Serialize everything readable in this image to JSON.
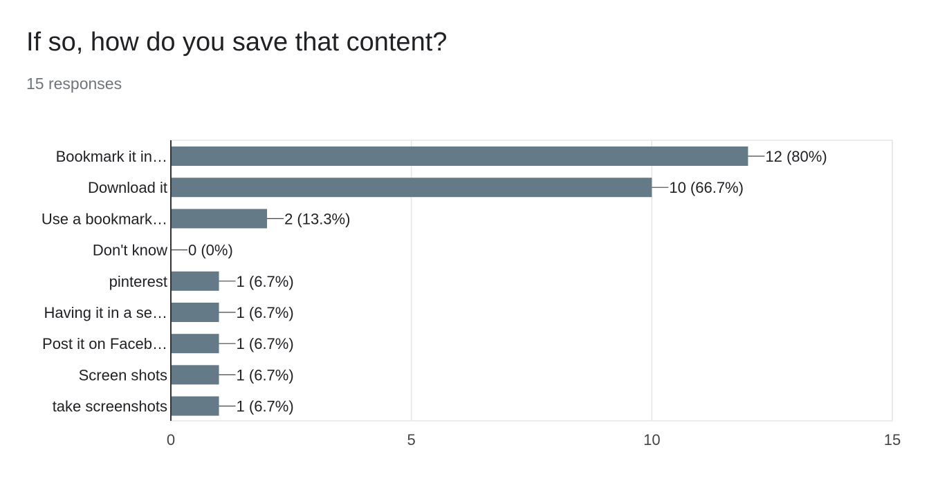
{
  "header": {
    "title": "If so, how do you save that content?",
    "responses": "15 responses"
  },
  "colors": {
    "bar": "#647a86",
    "grid": "#e6e6e6",
    "axis": "#333333",
    "text": "#202124",
    "muted": "#70757a"
  },
  "chart_data": {
    "type": "bar",
    "orientation": "horizontal",
    "categories": [
      "Bookmark it in…",
      "Download it",
      "Use a bookmark…",
      "Don't know",
      "pinterest",
      "Having it in a se…",
      "Post it on Faceb…",
      "Screen shots",
      "take screenshots"
    ],
    "values": [
      12,
      10,
      2,
      0,
      1,
      1,
      1,
      1,
      1
    ],
    "data_labels": [
      "12 (80%)",
      "10 (66.7%)",
      "2 (13.3%)",
      "0 (0%)",
      "1 (6.7%)",
      "1 (6.7%)",
      "1 (6.7%)",
      "1 (6.7%)",
      "1 (6.7%)"
    ],
    "xlim": [
      0,
      15
    ],
    "xticks": [
      "0",
      "5",
      "10",
      "15"
    ],
    "grid": true,
    "legend": "none"
  }
}
